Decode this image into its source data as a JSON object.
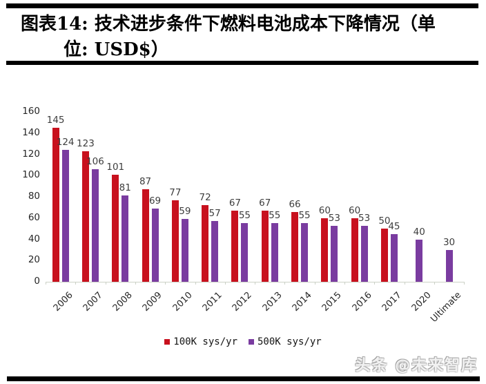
{
  "figure": {
    "title_line1": "图表14: 技术进步条件下燃料电池成本下降情况（单",
    "title_line2": "位: USD$）"
  },
  "watermark": {
    "text": "头条 @未来智库"
  },
  "chart_data": {
    "type": "bar",
    "title": "图表14: 技术进步条件下燃料电池成本下降情况（单位: USD$）",
    "xlabel": "",
    "ylabel": "",
    "unit": "USD$",
    "categories": [
      "2006",
      "2007",
      "2008",
      "2009",
      "2010",
      "2011",
      "2012",
      "2013",
      "2014",
      "2015",
      "2016",
      "2017",
      "2020",
      "Ultimate"
    ],
    "series": [
      {
        "name": "100K sys/yr",
        "color": "#C8111E",
        "values": [
          145,
          123,
          101,
          87,
          77,
          72,
          67,
          67,
          66,
          60,
          60,
          50,
          null,
          null
        ]
      },
      {
        "name": "500K sys/yr",
        "color": "#7A3CA0",
        "values": [
          124,
          106,
          81,
          69,
          59,
          57,
          55,
          55,
          55,
          53,
          53,
          45,
          40,
          30
        ]
      }
    ],
    "ylim": [
      0,
      160
    ],
    "yticks": [
      0,
      20,
      40,
      60,
      80,
      100,
      120,
      140,
      160
    ],
    "legend_position": "bottom",
    "grid": false,
    "value_labels": true
  }
}
